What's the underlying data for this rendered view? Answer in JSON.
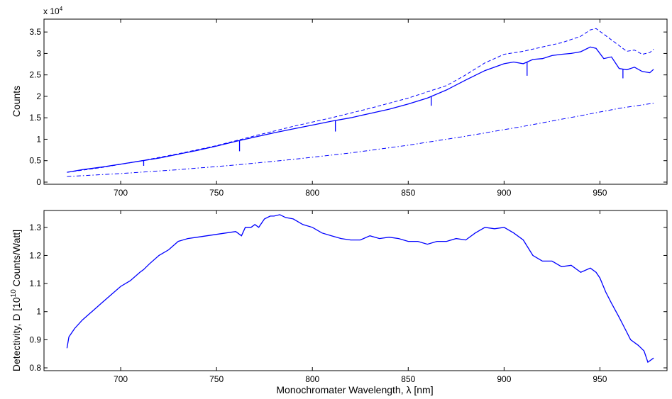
{
  "colors": {
    "series": "#0000ff",
    "axis": "#000000",
    "background": "#ffffff"
  },
  "chart_data": [
    {
      "type": "line",
      "title": "",
      "xlabel": "",
      "ylabel": "Counts",
      "y_multiplier_label": "x 10",
      "y_multiplier_exponent": "4",
      "xlim": [
        660,
        985
      ],
      "ylim": [
        -0.05,
        3.8
      ],
      "xticks": [
        700,
        750,
        800,
        850,
        900,
        950
      ],
      "xtick_labels": [
        "700",
        "750",
        "800",
        "850",
        "900",
        "950"
      ],
      "yticks": [
        0,
        0.5,
        1,
        1.5,
        2,
        2.5,
        3,
        3.5
      ],
      "ytick_labels": [
        "0",
        "0.5",
        "1",
        "1.5",
        "2",
        "2.5",
        "3",
        "3.5"
      ],
      "grid": false,
      "series": [
        {
          "style": "solid",
          "x": [
            672,
            680,
            690,
            700,
            710,
            720,
            730,
            740,
            750,
            760,
            770,
            780,
            790,
            800,
            810,
            820,
            830,
            840,
            850,
            860,
            870,
            880,
            890,
            900,
            905,
            910,
            915,
            920,
            925,
            930,
            935,
            940,
            945,
            948,
            952,
            956,
            960,
            964,
            968,
            972,
            976,
            978
          ],
          "y": [
            0.23,
            0.29,
            0.35,
            0.42,
            0.49,
            0.56,
            0.65,
            0.74,
            0.84,
            0.95,
            1.05,
            1.15,
            1.24,
            1.33,
            1.42,
            1.5,
            1.6,
            1.7,
            1.82,
            1.96,
            2.15,
            2.38,
            2.6,
            2.76,
            2.8,
            2.76,
            2.86,
            2.88,
            2.95,
            2.98,
            3.0,
            3.04,
            3.15,
            3.12,
            2.88,
            2.92,
            2.65,
            2.62,
            2.68,
            2.58,
            2.55,
            2.63
          ],
          "dips": [
            {
              "x": 712,
              "y": 0.38
            },
            {
              "x": 762,
              "y": 0.72
            },
            {
              "x": 812,
              "y": 1.18
            },
            {
              "x": 862,
              "y": 1.78
            },
            {
              "x": 912,
              "y": 2.48
            },
            {
              "x": 962,
              "y": 2.42
            }
          ]
        },
        {
          "style": "dashed",
          "x": [
            672,
            690,
            710,
            730,
            750,
            770,
            790,
            810,
            830,
            850,
            870,
            880,
            890,
            900,
            910,
            920,
            930,
            940,
            945,
            948,
            952,
            958,
            964,
            968,
            972,
            976,
            978
          ],
          "y": [
            0.23,
            0.34,
            0.49,
            0.66,
            0.85,
            1.08,
            1.3,
            1.5,
            1.72,
            1.96,
            2.25,
            2.5,
            2.78,
            2.98,
            3.05,
            3.15,
            3.25,
            3.4,
            3.55,
            3.58,
            3.45,
            3.25,
            3.05,
            3.08,
            2.98,
            3.02,
            3.1
          ]
        },
        {
          "style": "dashdot",
          "x": [
            672,
            700,
            730,
            760,
            790,
            820,
            850,
            880,
            910,
            940,
            960,
            978
          ],
          "y": [
            0.13,
            0.2,
            0.29,
            0.4,
            0.53,
            0.68,
            0.86,
            1.07,
            1.3,
            1.55,
            1.72,
            1.84
          ]
        }
      ]
    },
    {
      "type": "line",
      "title": "",
      "xlabel": "Monochromater Wavelength, λ [nm]",
      "ylabel_prefix": "Detectivity, D [10",
      "ylabel_exponent": "10",
      "ylabel_suffix": " Counts/Watt]",
      "xlim": [
        660,
        985
      ],
      "ylim": [
        0.79,
        1.36
      ],
      "xticks": [
        700,
        750,
        800,
        850,
        900,
        950
      ],
      "xtick_labels": [
        "700",
        "750",
        "800",
        "850",
        "900",
        "950"
      ],
      "yticks": [
        0.8,
        0.9,
        1.0,
        1.1,
        1.2,
        1.3
      ],
      "ytick_labels": [
        "0.8",
        "0.9",
        "1",
        "1.1",
        "1.2",
        "1.3"
      ],
      "grid": false,
      "series": [
        {
          "style": "solid",
          "x": [
            672,
            673,
            676,
            680,
            685,
            690,
            695,
            700,
            705,
            710,
            712,
            715,
            720,
            725,
            730,
            735,
            740,
            745,
            750,
            755,
            760,
            763,
            765,
            768,
            770,
            772,
            775,
            778,
            780,
            783,
            786,
            790,
            795,
            800,
            805,
            810,
            815,
            820,
            825,
            830,
            835,
            840,
            845,
            850,
            855,
            860,
            865,
            870,
            875,
            880,
            885,
            890,
            895,
            900,
            905,
            910,
            915,
            920,
            925,
            930,
            935,
            940,
            945,
            948,
            950,
            953,
            956,
            960,
            963,
            966,
            970,
            973,
            975,
            978
          ],
          "y": [
            0.87,
            0.91,
            0.94,
            0.97,
            1.0,
            1.03,
            1.06,
            1.09,
            1.11,
            1.14,
            1.15,
            1.17,
            1.2,
            1.22,
            1.25,
            1.26,
            1.265,
            1.27,
            1.275,
            1.28,
            1.285,
            1.27,
            1.3,
            1.3,
            1.31,
            1.3,
            1.33,
            1.34,
            1.34,
            1.345,
            1.335,
            1.33,
            1.31,
            1.3,
            1.28,
            1.27,
            1.26,
            1.255,
            1.255,
            1.27,
            1.26,
            1.265,
            1.26,
            1.25,
            1.25,
            1.24,
            1.25,
            1.25,
            1.26,
            1.255,
            1.28,
            1.3,
            1.295,
            1.3,
            1.28,
            1.255,
            1.2,
            1.18,
            1.18,
            1.16,
            1.165,
            1.14,
            1.155,
            1.14,
            1.12,
            1.07,
            1.03,
            0.98,
            0.94,
            0.9,
            0.88,
            0.86,
            0.82,
            0.835
          ]
        }
      ]
    }
  ]
}
